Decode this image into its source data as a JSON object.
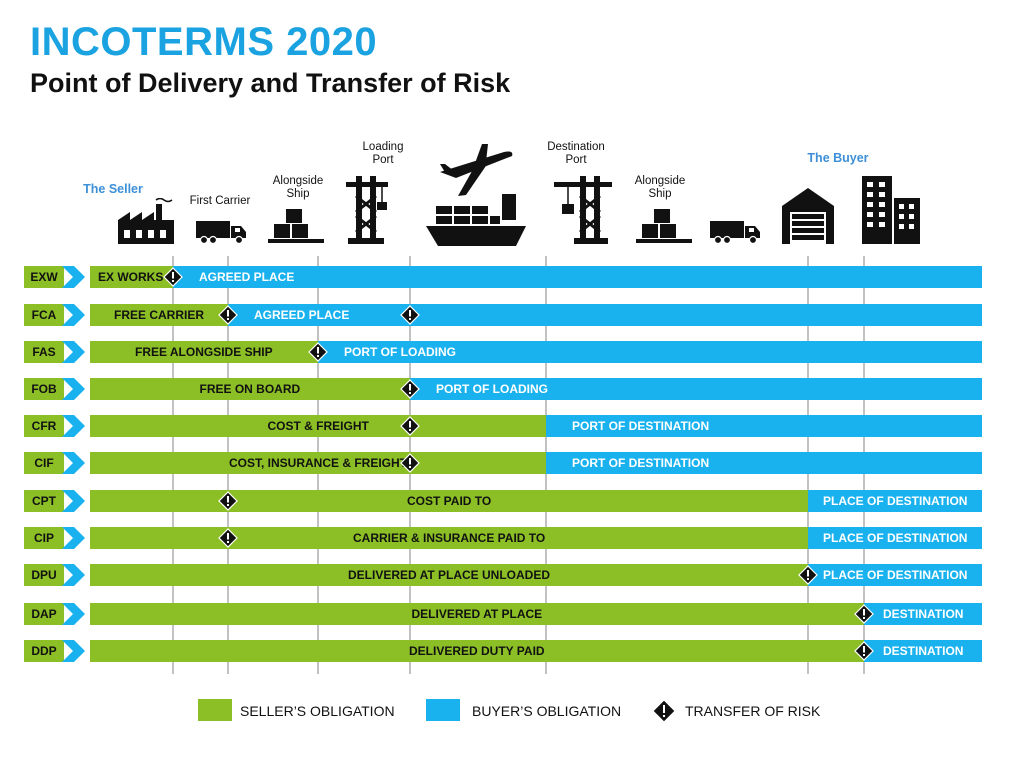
{
  "header": {
    "title": "INCOTERMS 2020",
    "subtitle": "Point of Delivery and Transfer of Risk"
  },
  "parties": {
    "seller": "The Seller",
    "buyer": "The Buyer"
  },
  "stages": {
    "first_carrier": "First Carrier",
    "alongside_ship_1": [
      "Alongside",
      "Ship"
    ],
    "loading_port": [
      "Loading",
      "Port"
    ],
    "destination_port": [
      "Destination",
      "Port"
    ],
    "alongside_ship_2": [
      "Alongside",
      "Ship"
    ]
  },
  "colors": {
    "seller": "#8cbf26",
    "buyer": "#1ab2ee",
    "title": "#1aa3e0"
  },
  "terms": [
    {
      "code": "EXW",
      "seller": "EX WORKS",
      "buyer": "AGREED PLACE",
      "risk_stage": 1,
      "extra_diamond_stage": null,
      "split_stage": 1
    },
    {
      "code": "FCA",
      "seller": "FREE CARRIER",
      "buyer": "AGREED PLACE",
      "risk_stage": 2,
      "extra_diamond_stage": 4,
      "split_stage": 2
    },
    {
      "code": "FAS",
      "seller": "FREE ALONGSIDE SHIP",
      "buyer": "PORT OF LOADING",
      "risk_stage": 3,
      "extra_diamond_stage": null,
      "split_stage": 3
    },
    {
      "code": "FOB",
      "seller": "FREE  ON BOARD",
      "buyer": "PORT OF LOADING",
      "risk_stage": 4,
      "extra_diamond_stage": null,
      "split_stage": 4
    },
    {
      "code": "CFR",
      "seller": "COST & FREIGHT",
      "buyer": "PORT OF DESTINATION",
      "risk_stage": 4,
      "extra_diamond_stage": null,
      "split_stage": 5
    },
    {
      "code": "CIF",
      "seller": "COST, INSURANCE & FREIGHT",
      "buyer": "PORT OF DESTINATION",
      "risk_stage": 4,
      "extra_diamond_stage": null,
      "split_stage": 5
    },
    {
      "code": "CPT",
      "seller": "COST PAID TO",
      "buyer": "PLACE OF DESTINATION",
      "risk_stage": 2,
      "extra_diamond_stage": null,
      "split_stage": 6
    },
    {
      "code": "CIP",
      "seller": "CARRIER & INSURANCE PAID TO",
      "buyer": "PLACE OF DESTINATION",
      "risk_stage": 2,
      "extra_diamond_stage": null,
      "split_stage": 6
    },
    {
      "code": "DPU",
      "seller": "DELIVERED AT PLACE UNLOADED",
      "buyer": "PLACE OF DESTINATION",
      "risk_stage": 6,
      "extra_diamond_stage": null,
      "split_stage": 6
    },
    {
      "code": "DAP",
      "seller": "DELIVERED AT PLACE",
      "buyer": "DESTINATION",
      "risk_stage": 7,
      "extra_diamond_stage": null,
      "split_stage": 7
    },
    {
      "code": "DDP",
      "seller": "DELIVERED DUTY PAID",
      "buyer": "DESTINATION",
      "risk_stage": 7,
      "extra_diamond_stage": null,
      "split_stage": 7
    }
  ],
  "legend": {
    "seller": "SELLER’S OBLIGATION",
    "buyer": "BUYER’S OBLIGATION",
    "risk": "TRANSFER OF RISK"
  }
}
